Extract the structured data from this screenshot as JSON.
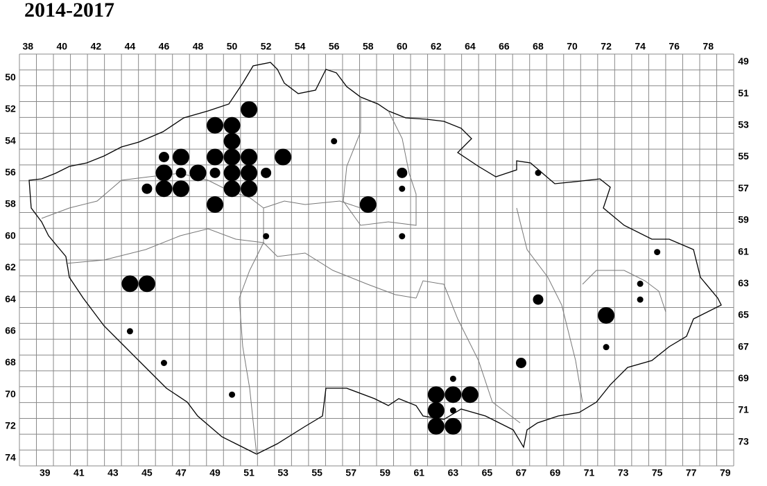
{
  "title": "2014-2017",
  "columns_top": [
    38,
    40,
    42,
    44,
    46,
    48,
    50,
    52,
    54,
    56,
    58,
    60,
    62,
    64,
    66,
    68,
    70,
    72,
    74,
    76,
    78
  ],
  "columns_bottom": [
    39,
    41,
    43,
    45,
    47,
    49,
    51,
    53,
    55,
    57,
    59,
    61,
    63,
    65,
    67,
    69,
    71,
    73,
    75,
    77,
    79
  ],
  "rows_left": [
    50,
    52,
    54,
    56,
    58,
    60,
    62,
    64,
    66,
    68,
    70,
    72,
    74
  ],
  "rows_right": [
    49,
    51,
    53,
    55,
    57,
    59,
    61,
    63,
    65,
    67,
    69,
    71,
    73
  ],
  "records": [
    {
      "col": 51,
      "row": 52,
      "size": "large"
    },
    {
      "col": 49,
      "row": 53,
      "size": "large"
    },
    {
      "col": 50,
      "row": 53,
      "size": "large"
    },
    {
      "col": 50,
      "row": 54,
      "size": "large"
    },
    {
      "col": 56,
      "row": 54,
      "size": "small"
    },
    {
      "col": 46,
      "row": 55,
      "size": "medium"
    },
    {
      "col": 47,
      "row": 55,
      "size": "large"
    },
    {
      "col": 49,
      "row": 55,
      "size": "large"
    },
    {
      "col": 50,
      "row": 55,
      "size": "large"
    },
    {
      "col": 51,
      "row": 55,
      "size": "large"
    },
    {
      "col": 53,
      "row": 55,
      "size": "large"
    },
    {
      "col": 46,
      "row": 56,
      "size": "large"
    },
    {
      "col": 47,
      "row": 56,
      "size": "medium"
    },
    {
      "col": 48,
      "row": 56,
      "size": "large"
    },
    {
      "col": 49,
      "row": 56,
      "size": "medium"
    },
    {
      "col": 50,
      "row": 56,
      "size": "large"
    },
    {
      "col": 51,
      "row": 56,
      "size": "large"
    },
    {
      "col": 52,
      "row": 56,
      "size": "medium"
    },
    {
      "col": 60,
      "row": 56,
      "size": "medium"
    },
    {
      "col": 68,
      "row": 56,
      "size": "small"
    },
    {
      "col": 45,
      "row": 57,
      "size": "medium"
    },
    {
      "col": 46,
      "row": 57,
      "size": "large"
    },
    {
      "col": 47,
      "row": 57,
      "size": "large"
    },
    {
      "col": 50,
      "row": 57,
      "size": "large"
    },
    {
      "col": 51,
      "row": 57,
      "size": "large"
    },
    {
      "col": 60,
      "row": 57,
      "size": "small"
    },
    {
      "col": 49,
      "row": 58,
      "size": "large"
    },
    {
      "col": 58,
      "row": 58,
      "size": "large"
    },
    {
      "col": 52,
      "row": 60,
      "size": "small"
    },
    {
      "col": 60,
      "row": 60,
      "size": "small"
    },
    {
      "col": 75,
      "row": 61,
      "size": "small"
    },
    {
      "col": 44,
      "row": 63,
      "size": "large"
    },
    {
      "col": 45,
      "row": 63,
      "size": "large"
    },
    {
      "col": 74,
      "row": 63,
      "size": "small"
    },
    {
      "col": 68,
      "row": 64,
      "size": "medium"
    },
    {
      "col": 74,
      "row": 64,
      "size": "small"
    },
    {
      "col": 72,
      "row": 65,
      "size": "large"
    },
    {
      "col": 44,
      "row": 66,
      "size": "small"
    },
    {
      "col": 72,
      "row": 67,
      "size": "small"
    },
    {
      "col": 46,
      "row": 68,
      "size": "small"
    },
    {
      "col": 67,
      "row": 68,
      "size": "medium"
    },
    {
      "col": 63,
      "row": 69,
      "size": "small"
    },
    {
      "col": 50,
      "row": 70,
      "size": "small"
    },
    {
      "col": 62,
      "row": 70,
      "size": "large"
    },
    {
      "col": 63,
      "row": 70,
      "size": "large"
    },
    {
      "col": 64,
      "row": 70,
      "size": "large"
    },
    {
      "col": 62,
      "row": 71,
      "size": "large"
    },
    {
      "col": 63,
      "row": 71,
      "size": "small"
    },
    {
      "col": 62,
      "row": 72,
      "size": "large"
    },
    {
      "col": 63,
      "row": 72,
      "size": "large"
    }
  ]
}
